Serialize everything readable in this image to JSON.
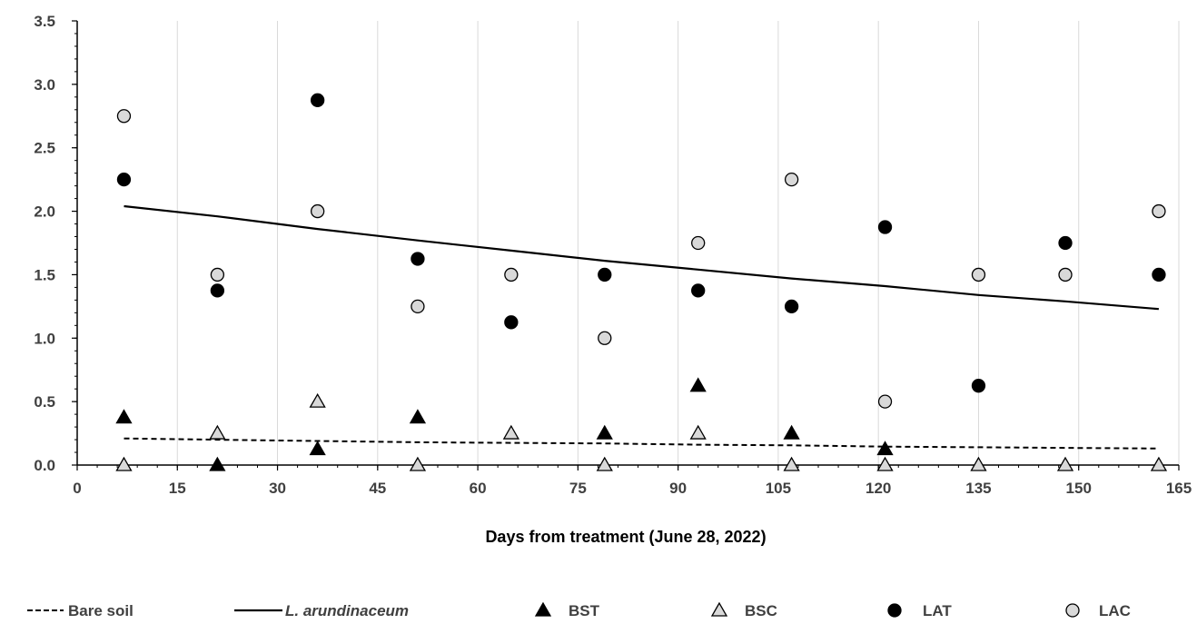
{
  "chart_data": {
    "type": "scatter",
    "xlabel": "Days from treatment (June 28, 2022)",
    "ylabel": "",
    "xlim": [
      0,
      165
    ],
    "ylim": [
      0,
      3.5
    ],
    "x_ticks": [
      "0",
      "15",
      "30",
      "45",
      "60",
      "75",
      "90",
      "105",
      "120",
      "135",
      "150",
      "165"
    ],
    "y_ticks": [
      "0.0",
      "0.5",
      "1.0",
      "1.5",
      "2.0",
      "2.5",
      "3.0",
      "3.5"
    ],
    "grid": "vertical",
    "legend_position": "bottom",
    "series": [
      {
        "name": "BST",
        "marker": "triangle-filled",
        "color": "#000000",
        "points": [
          [
            7,
            0.375
          ],
          [
            21,
            0.0
          ],
          [
            36,
            0.125
          ],
          [
            51,
            0.375
          ],
          [
            79,
            0.25
          ],
          [
            93,
            0.625
          ],
          [
            107,
            0.25
          ],
          [
            121,
            0.125
          ]
        ]
      },
      {
        "name": "BSC",
        "marker": "triangle-open",
        "color": "#d9d9d9",
        "points": [
          [
            7,
            0.0
          ],
          [
            21,
            0.25
          ],
          [
            36,
            0.5
          ],
          [
            51,
            0.0
          ],
          [
            65,
            0.25
          ],
          [
            79,
            0.0
          ],
          [
            93,
            0.25
          ],
          [
            107,
            0.0
          ],
          [
            121,
            0.0
          ],
          [
            135,
            0.0
          ],
          [
            148,
            0.0
          ],
          [
            162,
            0.0
          ]
        ]
      },
      {
        "name": "LAT",
        "marker": "circle-filled",
        "color": "#000000",
        "points": [
          [
            7,
            2.25
          ],
          [
            21,
            1.375
          ],
          [
            36,
            2.875
          ],
          [
            51,
            1.625
          ],
          [
            65,
            1.125
          ],
          [
            79,
            1.5
          ],
          [
            93,
            1.375
          ],
          [
            107,
            1.25
          ],
          [
            121,
            1.875
          ],
          [
            135,
            0.625
          ],
          [
            148,
            1.75
          ],
          [
            162,
            1.5
          ]
        ]
      },
      {
        "name": "LAC",
        "marker": "circle-open",
        "color": "#d9d9d9",
        "points": [
          [
            7,
            2.75
          ],
          [
            21,
            1.5
          ],
          [
            36,
            2.0
          ],
          [
            51,
            1.25
          ],
          [
            65,
            1.5
          ],
          [
            79,
            1.0
          ],
          [
            93,
            1.75
          ],
          [
            107,
            2.25
          ],
          [
            121,
            0.5
          ],
          [
            135,
            1.5
          ],
          [
            148,
            1.5
          ],
          [
            162,
            2.0
          ]
        ]
      }
    ],
    "trendlines": [
      {
        "name": "Bare soil",
        "style": "dashed",
        "color": "#000000",
        "points": [
          [
            7,
            0.21
          ],
          [
            21,
            0.2
          ],
          [
            36,
            0.19
          ],
          [
            51,
            0.18
          ],
          [
            65,
            0.175
          ],
          [
            79,
            0.17
          ],
          [
            93,
            0.16
          ],
          [
            107,
            0.155
          ],
          [
            121,
            0.145
          ],
          [
            135,
            0.14
          ],
          [
            148,
            0.135
          ],
          [
            162,
            0.13
          ]
        ]
      },
      {
        "name": "L. arundinaceum",
        "style": "solid",
        "italic": true,
        "color": "#000000",
        "points": [
          [
            7,
            2.04
          ],
          [
            21,
            1.96
          ],
          [
            36,
            1.86
          ],
          [
            51,
            1.77
          ],
          [
            65,
            1.69
          ],
          [
            79,
            1.61
          ],
          [
            93,
            1.54
          ],
          [
            107,
            1.47
          ],
          [
            121,
            1.41
          ],
          [
            135,
            1.34
          ],
          [
            148,
            1.29
          ],
          [
            162,
            1.23
          ]
        ]
      }
    ]
  },
  "legend": {
    "items": [
      {
        "label": "Bare soil",
        "kind": "dashed-line"
      },
      {
        "label": "L. arundinaceum",
        "kind": "solid-line"
      },
      {
        "label": "BST",
        "kind": "triangle-filled"
      },
      {
        "label": "BSC",
        "kind": "triangle-open"
      },
      {
        "label": "LAT",
        "kind": "circle-filled"
      },
      {
        "label": "LAC",
        "kind": "circle-open"
      }
    ]
  }
}
